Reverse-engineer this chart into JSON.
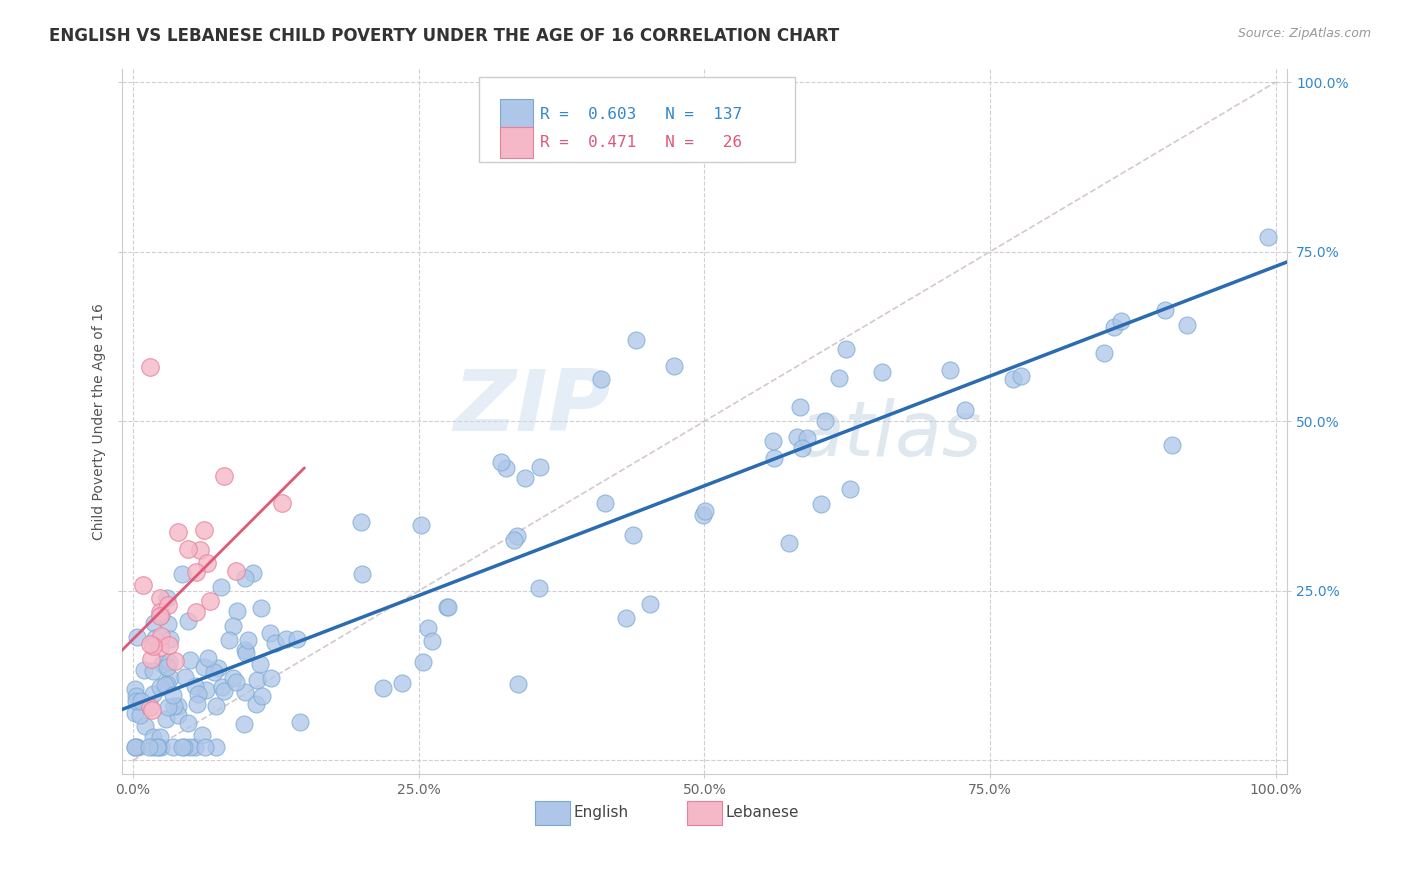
{
  "title": "ENGLISH VS LEBANESE CHILD POVERTY UNDER THE AGE OF 16 CORRELATION CHART",
  "source": "Source: ZipAtlas.com",
  "ylabel": "Child Poverty Under the Age of 16",
  "xticklabels": [
    "0.0%",
    "",
    "",
    "",
    "",
    "25.0%",
    "",
    "",
    "",
    "",
    "50.0%",
    "",
    "",
    "",
    "",
    "75.0%",
    "",
    "",
    "",
    "",
    "100.0%"
  ],
  "yticklabels_right": [
    "25.0%",
    "50.0%",
    "75.0%",
    "100.0%"
  ],
  "english_color": "#aec6e8",
  "lebanese_color": "#f4b8c8",
  "english_edge": "#7aaad4",
  "lebanese_edge": "#e8809a",
  "regression_english_color": "#2b6cb0",
  "regression_lebanese_color": "#e05878",
  "legend_R_english": "0.603",
  "legend_N_english": "137",
  "legend_R_lebanese": "0.471",
  "legend_N_lebanese": "26",
  "bg_color": "#ffffff",
  "watermark_zip": "ZIP",
  "watermark_atlas": "atlas",
  "title_fontsize": 12,
  "axis_label_fontsize": 10,
  "tick_fontsize": 10
}
